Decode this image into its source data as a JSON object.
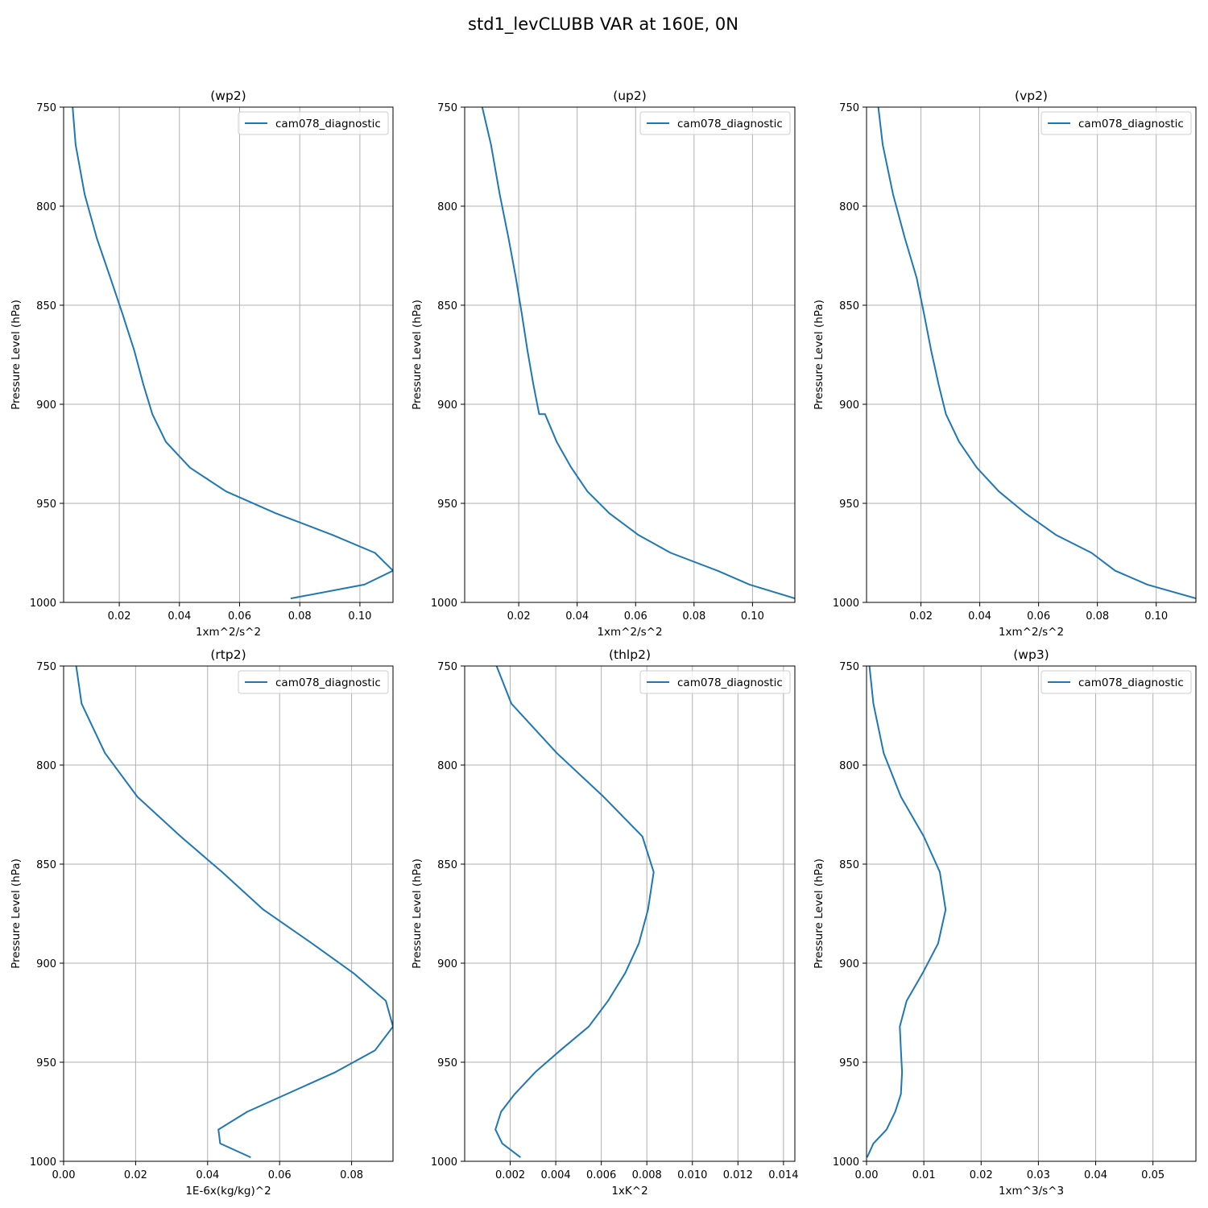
{
  "figure": {
    "title": "std1_levCLUBB VAR at 160E, 0N"
  },
  "colors": {
    "series": "#1f77b4"
  },
  "chart_data": [
    {
      "type": "line",
      "title": "(wp2)",
      "xlabel": "1xm^2/s^2",
      "ylabel": "Pressure Level (hPa)",
      "xlim": [
        0.0015,
        0.111
      ],
      "ylim": [
        1000,
        750
      ],
      "y_inverted": true,
      "xticks": [
        0.02,
        0.04,
        0.06,
        0.08,
        0.1
      ],
      "xtick_labels": [
        "0.02",
        "0.04",
        "0.06",
        "0.08",
        "0.10"
      ],
      "yticks": [
        750,
        800,
        850,
        900,
        950,
        1000
      ],
      "ytick_labels": [
        "750",
        "800",
        "850",
        "900",
        "950",
        "1000"
      ],
      "grid": true,
      "legend": "upper right",
      "series": [
        {
          "name": "cam078_diagnostic",
          "x": [
            0.0045,
            0.0055,
            0.0085,
            0.0125,
            0.017,
            0.021,
            0.025,
            0.028,
            0.031,
            0.0355,
            0.0435,
            0.0555,
            0.072,
            0.091,
            0.105,
            0.111,
            0.1015,
            0.077
          ],
          "y": [
            750,
            769,
            794,
            816,
            836,
            854,
            873,
            890,
            905,
            919,
            932,
            944,
            955,
            966,
            975,
            984,
            991,
            998
          ]
        }
      ]
    },
    {
      "type": "line",
      "title": "(up2)",
      "xlabel": "1xm^2/s^2",
      "ylabel": "Pressure Level (hPa)",
      "xlim": [
        0.0015,
        0.1145
      ],
      "ylim": [
        1000,
        750
      ],
      "y_inverted": true,
      "xticks": [
        0.02,
        0.04,
        0.06,
        0.08,
        0.1
      ],
      "xtick_labels": [
        "0.02",
        "0.04",
        "0.06",
        "0.08",
        "0.10"
      ],
      "yticks": [
        750,
        800,
        850,
        900,
        950,
        1000
      ],
      "ytick_labels": [
        "750",
        "800",
        "850",
        "900",
        "950",
        "1000"
      ],
      "grid": true,
      "legend": "upper right",
      "series": [
        {
          "name": "cam078_diagnostic",
          "x": [
            0.0075,
            0.0105,
            0.0135,
            0.0165,
            0.019,
            0.021,
            0.023,
            0.025,
            0.027,
            0.029,
            0.033,
            0.038,
            0.0435,
            0.051,
            0.061,
            0.072,
            0.088,
            0.099,
            0.1145
          ],
          "y": [
            750,
            769,
            794,
            816,
            836,
            854,
            873,
            890,
            905,
            905,
            919,
            932,
            944,
            955,
            966,
            975,
            984,
            991,
            998
          ]
        }
      ]
    },
    {
      "type": "line",
      "title": "(vp2)",
      "xlabel": "1xm^2/s^2",
      "ylabel": "Pressure Level (hPa)",
      "xlim": [
        0.0015,
        0.1135
      ],
      "ylim": [
        1000,
        750
      ],
      "y_inverted": true,
      "xticks": [
        0.02,
        0.04,
        0.06,
        0.08,
        0.1
      ],
      "xtick_labels": [
        "0.02",
        "0.04",
        "0.06",
        "0.08",
        "0.10"
      ],
      "yticks": [
        750,
        800,
        850,
        900,
        950,
        1000
      ],
      "ytick_labels": [
        "750",
        "800",
        "850",
        "900",
        "950",
        "1000"
      ],
      "grid": true,
      "legend": "upper right",
      "series": [
        {
          "name": "cam078_diagnostic",
          "x": [
            0.0055,
            0.007,
            0.0105,
            0.0145,
            0.0185,
            0.021,
            0.0235,
            0.026,
            0.0285,
            0.033,
            0.039,
            0.0465,
            0.0555,
            0.066,
            0.078,
            0.086,
            0.097,
            0.1135
          ],
          "y": [
            750,
            769,
            794,
            816,
            836,
            854,
            873,
            890,
            905,
            919,
            932,
            944,
            955,
            966,
            975,
            984,
            991,
            998
          ]
        }
      ]
    },
    {
      "type": "line",
      "title": "(rtp2)",
      "xlabel": "1E-6x(kg/kg)^2",
      "ylabel": "Pressure Level (hPa)",
      "xlim": [
        0.0,
        0.0915
      ],
      "ylim": [
        1000,
        750
      ],
      "y_inverted": true,
      "xticks": [
        0.0,
        0.02,
        0.04,
        0.06,
        0.08
      ],
      "xtick_labels": [
        "0.00",
        "0.02",
        "0.04",
        "0.06",
        "0.08"
      ],
      "yticks": [
        750,
        800,
        850,
        900,
        950,
        1000
      ],
      "ytick_labels": [
        "750",
        "800",
        "850",
        "900",
        "950",
        "1000"
      ],
      "grid": true,
      "legend": "upper right",
      "series": [
        {
          "name": "cam078_diagnostic",
          "x": [
            0.0035,
            0.005,
            0.0115,
            0.0205,
            0.0325,
            0.044,
            0.0555,
            0.069,
            0.0805,
            0.0895,
            0.0915,
            0.0865,
            0.0755,
            0.051,
            0.043,
            0.0435,
            0.052
          ],
          "y": [
            750,
            769,
            794,
            816,
            836,
            854,
            873,
            890,
            905,
            919,
            932,
            944,
            955,
            975,
            984,
            991,
            998
          ]
        }
      ]
    },
    {
      "type": "line",
      "title": "(thlp2)",
      "xlabel": "1xK^2",
      "ylabel": "Pressure Level (hPa)",
      "xlim": [
        0.0,
        0.0145
      ],
      "ylim": [
        1000,
        750
      ],
      "y_inverted": true,
      "xticks": [
        0.002,
        0.004,
        0.006,
        0.008,
        0.01,
        0.012,
        0.014
      ],
      "xtick_labels": [
        "0.002",
        "0.004",
        "0.006",
        "0.008",
        "0.010",
        "0.012",
        "0.014"
      ],
      "yticks": [
        750,
        800,
        850,
        900,
        950,
        1000
      ],
      "ytick_labels": [
        "750",
        "800",
        "850",
        "900",
        "950",
        "1000"
      ],
      "grid": true,
      "legend": "upper right",
      "series": [
        {
          "name": "cam078_diagnostic",
          "x": [
            0.0014,
            0.00205,
            0.00405,
            0.0061,
            0.0078,
            0.0083,
            0.00805,
            0.00765,
            0.00705,
            0.0063,
            0.00545,
            0.0042,
            0.0031,
            0.0022,
            0.0016,
            0.00135,
            0.00165,
            0.00245
          ],
          "y": [
            750,
            769,
            794,
            816,
            836,
            854,
            873,
            890,
            905,
            919,
            932,
            944,
            955,
            966,
            975,
            984,
            991,
            998
          ]
        }
      ]
    },
    {
      "type": "line",
      "title": "(wp3)",
      "xlabel": "1xm^3/s^3",
      "ylabel": "Pressure Level (hPa)",
      "xlim": [
        0.0,
        0.0575
      ],
      "ylim": [
        1000,
        750
      ],
      "y_inverted": true,
      "xticks": [
        0.0,
        0.01,
        0.02,
        0.03,
        0.04,
        0.05
      ],
      "xtick_labels": [
        "0.00",
        "0.01",
        "0.02",
        "0.03",
        "0.04",
        "0.05"
      ],
      "yticks": [
        750,
        800,
        850,
        900,
        950,
        1000
      ],
      "ytick_labels": [
        "750",
        "800",
        "850",
        "900",
        "950",
        "1000"
      ],
      "grid": true,
      "legend": "upper right",
      "series": [
        {
          "name": "cam078_diagnostic",
          "x": [
            0.0005,
            0.0012,
            0.003,
            0.006,
            0.01,
            0.0128,
            0.0138,
            0.0125,
            0.0098,
            0.007,
            0.0058,
            0.006,
            0.0062,
            0.006,
            0.005,
            0.0035,
            0.0012,
            0.0001
          ],
          "y": [
            750,
            769,
            794,
            816,
            836,
            854,
            873,
            890,
            905,
            919,
            932,
            944,
            955,
            966,
            975,
            984,
            991,
            998
          ]
        }
      ]
    }
  ]
}
